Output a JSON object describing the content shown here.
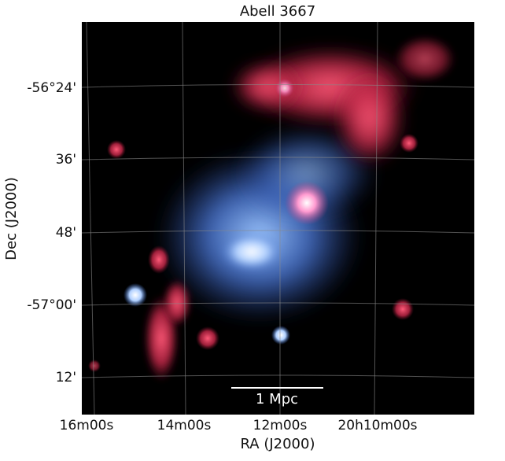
{
  "figure": {
    "title": "Abell 3667",
    "x_label": "RA (J2000)",
    "y_label": "Dec (J2000)",
    "x_ticks": [
      "16m00s",
      "14m00s",
      "12m00s",
      "20h10m00s"
    ],
    "y_ticks": [
      "-56°24'",
      "36'",
      "48'",
      "-57°00'",
      "12'"
    ],
    "scale_bar": "1 Mpc"
  }
}
